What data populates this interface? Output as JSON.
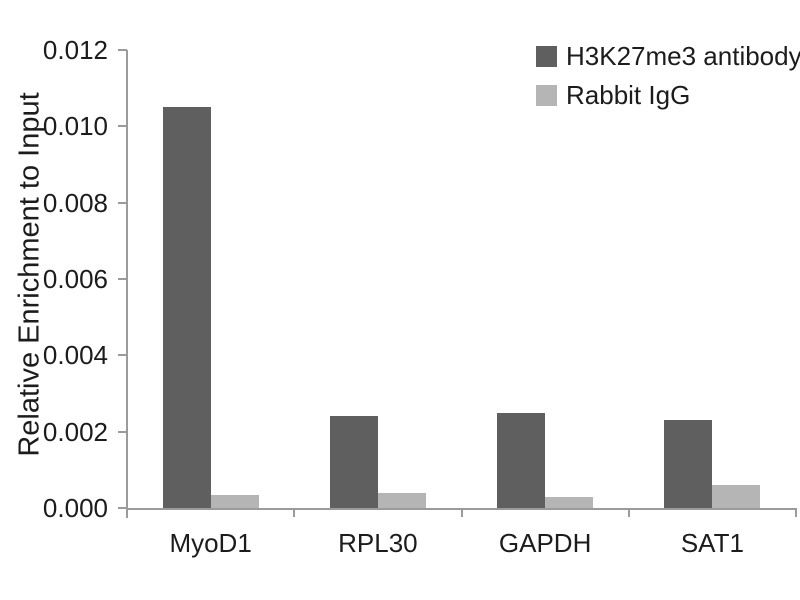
{
  "chart_data": {
    "type": "bar",
    "title": "",
    "xlabel": "",
    "ylabel": "Relative Enrichment to Input",
    "categories": [
      "MyoD1",
      "RPL30",
      "GAPDH",
      "SAT1"
    ],
    "series": [
      {
        "name": "H3K27me3 antibody",
        "color": "#5f5f5f",
        "values": [
          0.0105,
          0.0024,
          0.0025,
          0.0023
        ]
      },
      {
        "name": "Rabbit IgG",
        "color": "#b5b5b5",
        "values": [
          0.00035,
          0.0004,
          0.0003,
          0.0006
        ]
      }
    ],
    "ylim": [
      0,
      0.012
    ],
    "ytick_step": 0.002,
    "ytick_labels": [
      "0.000",
      "0.002",
      "0.004",
      "0.006",
      "0.008",
      "0.010",
      "0.012"
    ],
    "grid": false,
    "legend_position": "top-right",
    "axis_color": "#9b9b9b",
    "text_color": "#1c1c1c",
    "background_color": "#ffffff"
  }
}
